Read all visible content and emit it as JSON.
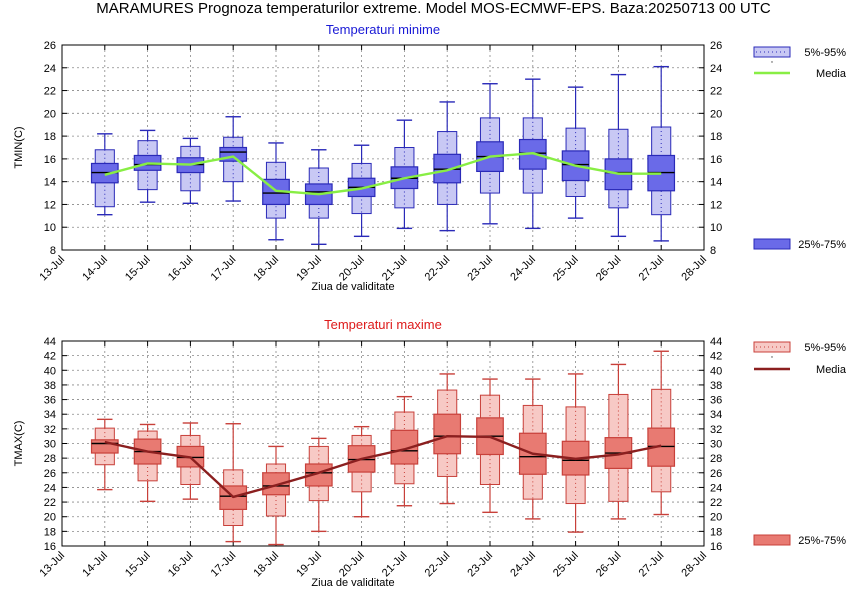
{
  "title": "MARAMURES  Prognoza temperaturilor extreme.  Model MOS-ECMWF-EPS. Baza:20250713 00 UTC",
  "x_tick_labels": [
    "13-Jul",
    "14-Jul",
    "15-Jul",
    "16-Jul",
    "17-Jul",
    "18-Jul",
    "19-Jul",
    "20-Jul",
    "21-Jul",
    "22-Jul",
    "23-Jul",
    "24-Jul",
    "25-Jul",
    "26-Jul",
    "27-Jul",
    "28-Jul"
  ],
  "chart_data": [
    {
      "type": "boxplot",
      "title": "Temperaturi minime",
      "title_color": "#1a1ad6",
      "xlabel": "Ziua de validitate",
      "ylabel": "TMIN(C)",
      "ylim": [
        8,
        26
      ],
      "y_ticks": [
        8,
        10,
        12,
        14,
        16,
        18,
        20,
        22,
        24,
        26
      ],
      "grid": true,
      "colors": {
        "box": "#6a6ae8",
        "box_light": "#c8c8f4",
        "stroke": "#2a2ab8",
        "median": "#000000",
        "mean": "#88ee44"
      },
      "legend": {
        "range_label": "5%-95%",
        "mean_label": "Media",
        "box_label": "25%-75%"
      },
      "categories": [
        "14-Jul",
        "15-Jul",
        "16-Jul",
        "17-Jul",
        "18-Jul",
        "19-Jul",
        "20-Jul",
        "21-Jul",
        "22-Jul",
        "23-Jul",
        "24-Jul",
        "25-Jul",
        "26-Jul",
        "27-Jul"
      ],
      "p5": [
        11.1,
        12.2,
        12.1,
        12.3,
        8.9,
        8.5,
        9.2,
        9.9,
        9.7,
        10.3,
        9.9,
        10.8,
        9.2,
        8.8
      ],
      "p5_box": [
        11.8,
        13.3,
        13.2,
        14.0,
        10.8,
        10.8,
        11.2,
        11.7,
        12.0,
        13.0,
        13.0,
        12.7,
        11.7,
        11.1
      ],
      "p25": [
        13.9,
        15.0,
        14.8,
        15.8,
        12.0,
        12.0,
        12.7,
        13.4,
        13.9,
        14.9,
        15.1,
        14.1,
        13.3,
        13.2
      ],
      "median": [
        14.8,
        15.5,
        15.5,
        16.6,
        13.0,
        13.1,
        13.5,
        14.3,
        15.1,
        16.2,
        16.5,
        15.5,
        14.8,
        14.8
      ],
      "p75": [
        15.6,
        16.3,
        16.1,
        17.0,
        14.2,
        13.8,
        14.3,
        15.3,
        16.4,
        17.5,
        17.7,
        16.7,
        16.0,
        16.3
      ],
      "p95_box": [
        16.8,
        17.6,
        17.1,
        17.9,
        15.7,
        15.2,
        15.6,
        17.0,
        18.4,
        19.6,
        19.6,
        18.7,
        18.6,
        18.8
      ],
      "p95": [
        18.2,
        18.5,
        17.8,
        19.7,
        17.4,
        16.8,
        17.2,
        19.4,
        21.0,
        22.6,
        23.0,
        22.3,
        23.4,
        24.1
      ],
      "mean": [
        14.6,
        15.6,
        15.5,
        16.2,
        13.2,
        12.9,
        13.4,
        14.3,
        15.0,
        16.2,
        16.5,
        15.4,
        14.7,
        14.7
      ]
    },
    {
      "type": "boxplot",
      "title": "Temperaturi maxime",
      "title_color": "#dd1a1a",
      "xlabel": "Ziua de validitate",
      "ylabel": "TMAX(C)",
      "ylim": [
        16,
        44
      ],
      "y_ticks": [
        16,
        18,
        20,
        22,
        24,
        26,
        28,
        30,
        32,
        34,
        36,
        38,
        40,
        42,
        44
      ],
      "grid": true,
      "colors": {
        "box": "#e87a72",
        "box_light": "#f7c9c5",
        "stroke": "#c8403a",
        "median": "#000000",
        "mean": "#8b1f1f"
      },
      "legend": {
        "range_label": "5%-95%",
        "mean_label": "Media",
        "box_label": "25%-75%"
      },
      "categories": [
        "14-Jul",
        "15-Jul",
        "16-Jul",
        "17-Jul",
        "18-Jul",
        "19-Jul",
        "20-Jul",
        "21-Jul",
        "22-Jul",
        "23-Jul",
        "24-Jul",
        "25-Jul",
        "26-Jul",
        "27-Jul"
      ],
      "p5": [
        23.7,
        22.1,
        22.4,
        16.6,
        16.2,
        18.0,
        20.0,
        21.5,
        21.8,
        20.6,
        19.7,
        17.9,
        19.7,
        20.3
      ],
      "p5_box": [
        27.1,
        24.9,
        24.4,
        18.8,
        20.1,
        22.2,
        23.4,
        24.5,
        25.5,
        24.4,
        22.4,
        21.8,
        22.1,
        23.4
      ],
      "p25": [
        28.7,
        27.2,
        26.8,
        21.0,
        23.0,
        24.2,
        26.1,
        27.2,
        28.6,
        28.5,
        25.8,
        25.7,
        26.6,
        26.9
      ],
      "median": [
        30.0,
        28.9,
        28.1,
        22.8,
        24.2,
        26.0,
        27.8,
        29.0,
        31.0,
        31.0,
        28.2,
        27.7,
        28.7,
        29.6
      ],
      "p75": [
        30.5,
        30.6,
        29.6,
        24.2,
        26.0,
        27.2,
        29.7,
        31.8,
        34.0,
        33.5,
        31.4,
        30.3,
        30.8,
        32.1
      ],
      "p95_box": [
        32.1,
        31.7,
        31.1,
        26.4,
        27.2,
        29.6,
        31.1,
        34.3,
        37.3,
        36.6,
        35.2,
        35.0,
        36.7,
        37.4
      ],
      "p95": [
        33.3,
        32.6,
        32.8,
        32.7,
        29.6,
        30.7,
        32.3,
        36.4,
        39.5,
        38.8,
        38.8,
        39.5,
        40.8,
        42.6
      ],
      "mean": [
        30.2,
        28.9,
        28.1,
        22.7,
        24.3,
        26.0,
        27.9,
        29.2,
        31.0,
        30.9,
        28.6,
        27.9,
        28.5,
        29.7
      ]
    }
  ]
}
